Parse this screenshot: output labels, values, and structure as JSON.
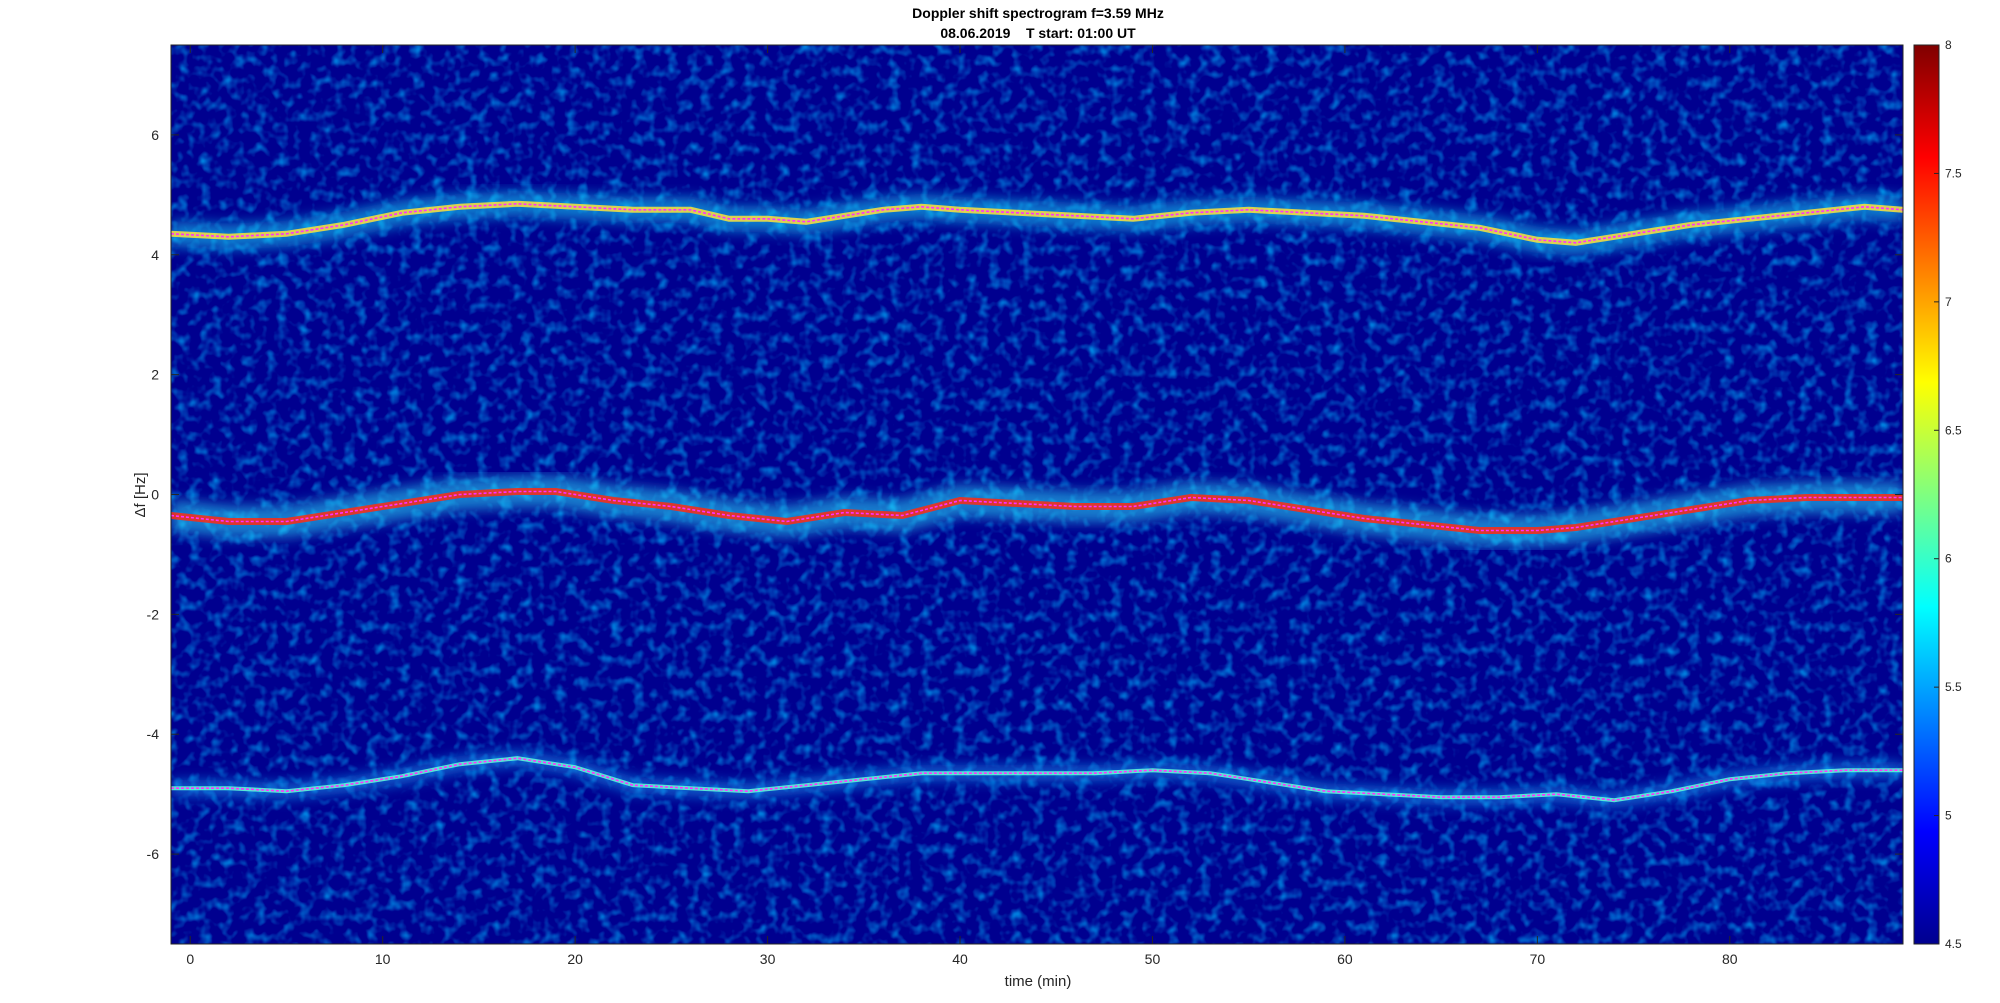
{
  "chart_data": {
    "type": "heatmap",
    "title": "Doppler shift spectrogram f=3.59 MHz",
    "subtitle": "08.06.2019    T start: 01:00 UT",
    "xlabel": "time (min)",
    "ylabel": "Δf [Hz]",
    "xlim": [
      -1,
      89
    ],
    "ylim": [
      -7.5,
      7.5
    ],
    "x_ticks": [
      0,
      10,
      20,
      30,
      40,
      50,
      60,
      70,
      80
    ],
    "y_ticks": [
      6,
      4,
      2,
      0,
      -2,
      -4,
      -6
    ],
    "colorbar": {
      "range": [
        4.5,
        8
      ],
      "ticks": [
        8,
        7.5,
        7,
        6.5,
        6,
        5.5,
        5,
        4.5
      ],
      "colormap": "jet"
    },
    "colors": {
      "background_low": "#00008f",
      "trace_line": "#ff30ff",
      "fit_line": "#000000"
    },
    "series": [
      {
        "x": [
          -1,
          2,
          5,
          8,
          11,
          14,
          17,
          20,
          23,
          26,
          28,
          30,
          32,
          34,
          36,
          38,
          40,
          43,
          46,
          49,
          52,
          55,
          58,
          61,
          64,
          67,
          70,
          72,
          75,
          78,
          81,
          84,
          87,
          89
        ],
        "y": [
          4.35,
          4.3,
          4.35,
          4.5,
          4.7,
          4.8,
          4.85,
          4.8,
          4.75,
          4.75,
          4.6,
          4.6,
          4.55,
          4.65,
          4.75,
          4.8,
          4.75,
          4.7,
          4.65,
          4.6,
          4.7,
          4.75,
          4.7,
          4.65,
          4.55,
          4.45,
          4.25,
          4.2,
          4.35,
          4.5,
          4.6,
          4.7,
          4.8,
          4.75
        ]
      },
      {
        "x": [
          -1,
          2,
          5,
          8,
          11,
          14,
          17,
          19,
          22,
          25,
          28,
          31,
          34,
          37,
          40,
          43,
          46,
          49,
          52,
          55,
          58,
          61,
          64,
          67,
          70,
          72,
          75,
          78,
          81,
          84,
          87,
          89
        ],
        "y": [
          -0.35,
          -0.45,
          -0.45,
          -0.3,
          -0.15,
          0.0,
          0.05,
          0.05,
          -0.1,
          -0.2,
          -0.35,
          -0.45,
          -0.3,
          -0.35,
          -0.1,
          -0.15,
          -0.2,
          -0.2,
          -0.05,
          -0.1,
          -0.25,
          -0.4,
          -0.5,
          -0.6,
          -0.6,
          -0.55,
          -0.4,
          -0.25,
          -0.1,
          -0.05,
          -0.05,
          -0.05
        ]
      },
      {
        "x": [
          -1,
          2,
          5,
          8,
          11,
          14,
          17,
          20,
          23,
          26,
          29,
          32,
          35,
          38,
          41,
          44,
          47,
          50,
          53,
          56,
          59,
          62,
          65,
          68,
          71,
          74,
          77,
          80,
          83,
          86,
          89
        ],
        "y": [
          -4.9,
          -4.9,
          -4.95,
          -4.85,
          -4.7,
          -4.5,
          -4.4,
          -4.55,
          -4.85,
          -4.9,
          -4.95,
          -4.85,
          -4.75,
          -4.65,
          -4.65,
          -4.65,
          -4.65,
          -4.6,
          -4.65,
          -4.8,
          -4.95,
          -5.0,
          -5.05,
          -5.05,
          -5.0,
          -5.1,
          -4.95,
          -4.75,
          -4.65,
          -4.6,
          -4.6
        ]
      }
    ]
  }
}
